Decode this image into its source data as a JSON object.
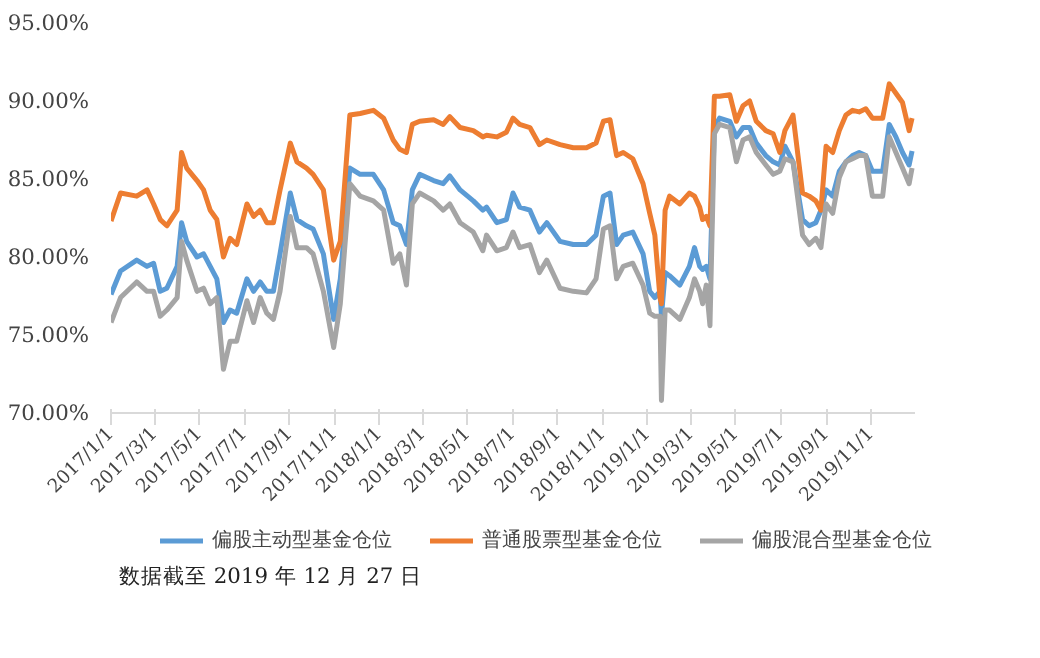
{
  "chart_data": {
    "type": "line",
    "x": [
      "2017-01-01",
      "2017-01-14",
      "2017-02-05",
      "2017-02-19",
      "2017-02-28",
      "2017-03-09",
      "2017-03-18",
      "2017-04-01",
      "2017-04-07",
      "2017-04-14",
      "2017-04-28",
      "2017-05-07",
      "2017-05-16",
      "2017-05-25",
      "2017-06-03",
      "2017-06-12",
      "2017-06-21",
      "2017-07-05",
      "2017-07-14",
      "2017-07-23",
      "2017-08-01",
      "2017-08-10",
      "2017-08-19",
      "2017-09-02",
      "2017-09-11",
      "2017-09-24",
      "2017-10-03",
      "2017-10-17",
      "2017-10-31",
      "2017-11-09",
      "2017-11-22",
      "2017-12-06",
      "2017-12-24",
      "2018-01-07",
      "2018-01-20",
      "2018-01-29",
      "2018-02-07",
      "2018-02-15",
      "2018-02-25",
      "2018-03-16",
      "2018-03-29",
      "2018-04-07",
      "2018-04-21",
      "2018-05-09",
      "2018-05-22",
      "2018-05-27",
      "2018-06-10",
      "2018-06-23",
      "2018-07-02",
      "2018-07-11",
      "2018-07-25",
      "2018-08-07",
      "2018-08-17",
      "2018-09-04",
      "2018-09-22",
      "2018-10-10",
      "2018-10-23",
      "2018-11-02",
      "2018-11-11",
      "2018-11-20",
      "2018-11-29",
      "2018-12-12",
      "2018-12-26",
      "2019-01-04",
      "2019-01-11",
      "2019-01-18",
      "2019-01-20",
      "2019-01-25",
      "2019-01-31",
      "2019-02-14",
      "2019-02-27",
      "2019-03-06",
      "2019-03-13",
      "2019-03-17",
      "2019-03-22",
      "2019-03-27",
      "2019-04-02",
      "2019-04-09",
      "2019-04-23",
      "2019-05-02",
      "2019-05-11",
      "2019-05-20",
      "2019-05-29",
      "2019-06-11",
      "2019-06-21",
      "2019-06-30",
      "2019-07-07",
      "2019-07-18",
      "2019-07-31",
      "2019-08-09",
      "2019-08-18",
      "2019-08-25",
      "2019-09-01",
      "2019-09-10",
      "2019-09-19",
      "2019-09-28",
      "2019-10-07",
      "2019-10-16",
      "2019-10-25",
      "2019-11-03",
      "2019-11-17",
      "2019-11-26",
      "2019-12-05",
      "2019-12-14",
      "2019-12-23",
      "2019-12-27"
    ],
    "series": [
      {
        "name": "偏股主动型基金仓位",
        "color": "#5b9bd5",
        "values": [
          77.6,
          79.1,
          79.8,
          79.4,
          79.6,
          77.8,
          78.0,
          79.4,
          82.2,
          81.0,
          80.0,
          80.2,
          79.4,
          78.6,
          75.8,
          76.6,
          76.4,
          78.6,
          77.8,
          78.4,
          77.8,
          77.8,
          80.2,
          84.1,
          82.4,
          82.0,
          81.8,
          80.2,
          76.0,
          78.6,
          85.7,
          85.3,
          85.3,
          84.3,
          82.2,
          82.0,
          80.8,
          84.3,
          85.3,
          84.9,
          84.7,
          85.2,
          84.3,
          83.6,
          83.0,
          83.2,
          82.2,
          82.4,
          84.1,
          83.2,
          83.0,
          81.6,
          82.2,
          81.0,
          80.8,
          80.8,
          81.4,
          83.9,
          84.1,
          80.8,
          81.4,
          81.6,
          80.2,
          77.8,
          77.4,
          77.8,
          76.2,
          79.0,
          78.8,
          78.2,
          79.4,
          80.6,
          79.4,
          79.2,
          79.4,
          78.6,
          88.3,
          88.9,
          88.7,
          87.7,
          88.3,
          88.3,
          87.3,
          86.5,
          86.1,
          85.9,
          87.1,
          86.1,
          82.4,
          82.0,
          82.2,
          83.0,
          84.3,
          83.9,
          85.5,
          86.1,
          86.5,
          86.7,
          86.5,
          85.5,
          85.5,
          88.5,
          87.7,
          86.7,
          85.9,
          86.8
        ]
      },
      {
        "name": "普通股票型基金仓位",
        "color": "#ed7d31",
        "values": [
          82.3,
          84.1,
          83.9,
          84.3,
          83.4,
          82.4,
          82.0,
          83.0,
          86.7,
          85.7,
          84.9,
          84.3,
          83.0,
          82.4,
          80.0,
          81.2,
          80.8,
          83.4,
          82.6,
          83.0,
          82.2,
          82.2,
          84.3,
          87.3,
          86.1,
          85.7,
          85.3,
          84.3,
          79.8,
          81.0,
          89.1,
          89.2,
          89.4,
          88.9,
          87.5,
          86.9,
          86.7,
          88.5,
          88.7,
          88.8,
          88.5,
          89.0,
          88.3,
          88.1,
          87.7,
          87.8,
          87.7,
          88.0,
          88.9,
          88.5,
          88.3,
          87.2,
          87.5,
          87.2,
          87.0,
          87.0,
          87.3,
          88.7,
          88.8,
          86.5,
          86.7,
          86.3,
          84.7,
          82.8,
          81.4,
          77.4,
          77.0,
          83.0,
          83.9,
          83.4,
          84.1,
          83.9,
          83.2,
          82.4,
          82.6,
          82.0,
          90.3,
          90.3,
          90.4,
          88.7,
          89.7,
          90.0,
          88.7,
          88.1,
          87.9,
          86.7,
          88.1,
          89.1,
          84.1,
          83.9,
          83.6,
          83.0,
          87.1,
          86.7,
          88.1,
          89.1,
          89.4,
          89.3,
          89.5,
          88.9,
          88.9,
          91.1,
          90.5,
          89.9,
          88.1,
          88.9
        ]
      },
      {
        "name": "偏股混合型基金仓位",
        "color": "#a5a5a5",
        "values": [
          75.8,
          77.4,
          78.4,
          77.8,
          77.8,
          76.2,
          76.6,
          77.4,
          81.0,
          79.8,
          77.8,
          78.0,
          77.0,
          77.4,
          72.8,
          74.6,
          74.6,
          77.2,
          75.8,
          77.4,
          76.4,
          76.0,
          77.8,
          82.6,
          80.6,
          80.6,
          80.2,
          77.8,
          74.2,
          77.0,
          84.7,
          83.9,
          83.6,
          83.0,
          79.6,
          80.2,
          78.2,
          83.4,
          84.1,
          83.6,
          83.0,
          83.4,
          82.2,
          81.6,
          80.4,
          81.4,
          80.4,
          80.6,
          81.6,
          80.6,
          80.8,
          79.0,
          79.8,
          78.0,
          77.8,
          77.7,
          78.6,
          81.8,
          82.0,
          78.6,
          79.4,
          79.6,
          78.2,
          76.4,
          76.2,
          76.2,
          70.8,
          76.6,
          76.6,
          76.0,
          77.4,
          78.6,
          77.8,
          77.0,
          78.2,
          75.6,
          87.9,
          88.5,
          88.3,
          86.1,
          87.5,
          87.7,
          86.7,
          85.9,
          85.3,
          85.5,
          86.3,
          86.1,
          81.4,
          80.8,
          81.2,
          80.6,
          83.4,
          82.8,
          85.1,
          86.1,
          86.3,
          86.5,
          86.5,
          83.9,
          83.9,
          87.7,
          86.7,
          85.7,
          84.7,
          85.7
        ]
      }
    ],
    "ylim": [
      70,
      95
    ],
    "yticks": [
      {
        "value": 70,
        "label": "70.00%"
      },
      {
        "value": 75,
        "label": "75.00%"
      },
      {
        "value": 80,
        "label": "80.00%"
      },
      {
        "value": 85,
        "label": "85.00%"
      },
      {
        "value": 90,
        "label": "90.00%"
      },
      {
        "value": 95,
        "label": "95.00%"
      }
    ],
    "xlim": [
      "2017-01-01",
      "2019-12-31"
    ],
    "xticks": [
      {
        "value": "2017-01-01",
        "label": "2017/1/1"
      },
      {
        "value": "2017-03-01",
        "label": "2017/3/1"
      },
      {
        "value": "2017-05-01",
        "label": "2017/5/1"
      },
      {
        "value": "2017-07-01",
        "label": "2017/7/1"
      },
      {
        "value": "2017-09-01",
        "label": "2017/9/1"
      },
      {
        "value": "2017-11-01",
        "label": "2017/11/1"
      },
      {
        "value": "2018-01-01",
        "label": "2018/1/1"
      },
      {
        "value": "2018-03-01",
        "label": "2018/3/1"
      },
      {
        "value": "2018-05-01",
        "label": "2018/5/1"
      },
      {
        "value": "2018-07-01",
        "label": "2018/7/1"
      },
      {
        "value": "2018-09-01",
        "label": "2018/9/1"
      },
      {
        "value": "2018-11-01",
        "label": "2018/11/1"
      },
      {
        "value": "2019-01-01",
        "label": "2019/1/1"
      },
      {
        "value": "2019-03-01",
        "label": "2019/3/1"
      },
      {
        "value": "2019-05-01",
        "label": "2019/5/1"
      },
      {
        "value": "2019-07-01",
        "label": "2019/7/1"
      },
      {
        "value": "2019-09-01",
        "label": "2019/9/1"
      },
      {
        "value": "2019-11-01",
        "label": "2019/11/1"
      }
    ],
    "grid": false,
    "legend": "bottom",
    "marker": "none",
    "line_style": "solid",
    "annotations": [
      "数据截至 2019 年 12 月 27 日"
    ]
  }
}
